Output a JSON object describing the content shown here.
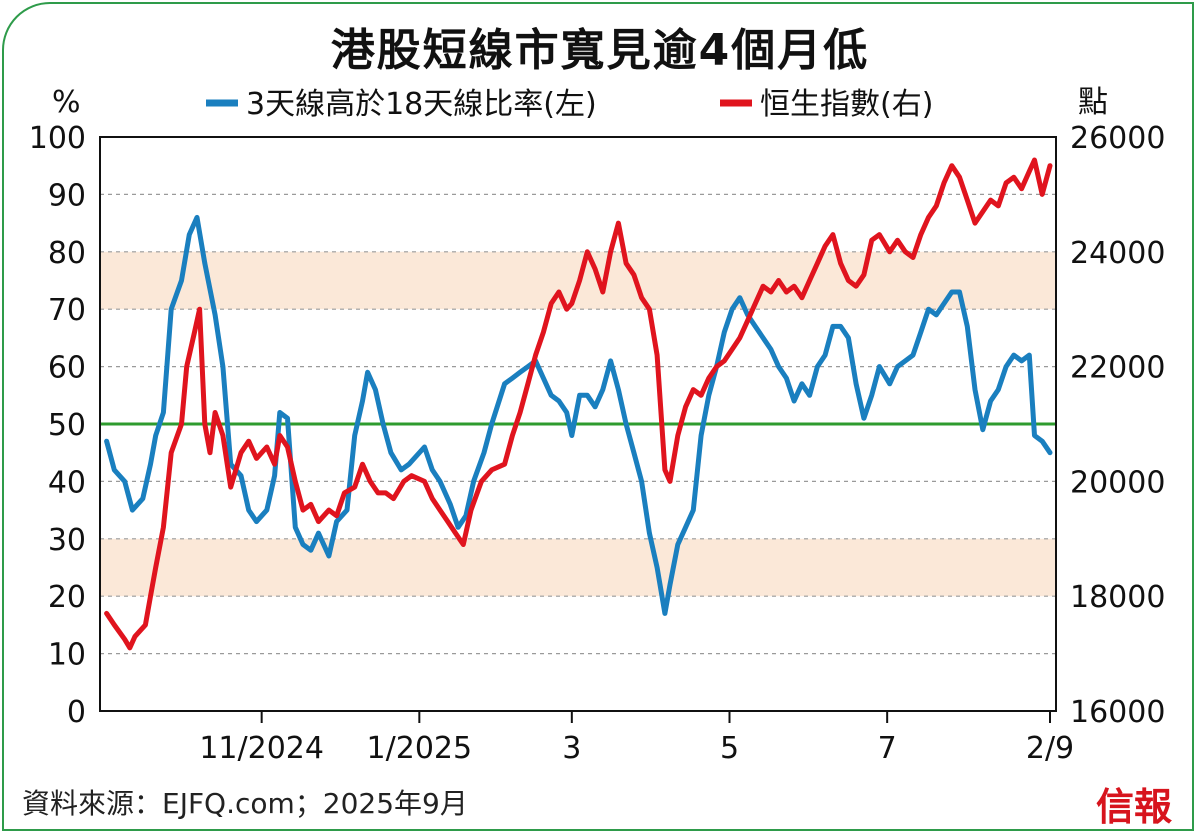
{
  "title": "港股短線市寬見逾4個月低",
  "source": "資料來源：EJFQ.com；2025年9月",
  "brand": "信報",
  "chart_data": {
    "type": "line",
    "left_unit": "%",
    "right_unit": "點",
    "x_range": [
      "2024-09-01",
      "2025-09-02"
    ],
    "x_ticks": [
      {
        "date": "2024-11-01",
        "label": "11/2024"
      },
      {
        "date": "2025-01-01",
        "label": "1/2025"
      },
      {
        "date": "2025-03-01",
        "label": "3"
      },
      {
        "date": "2025-05-01",
        "label": "5"
      },
      {
        "date": "2025-07-01",
        "label": "7"
      },
      {
        "date": "2025-09-02",
        "label": "2/9"
      }
    ],
    "y_left": {
      "min": 0,
      "max": 100,
      "ticks": [
        0,
        10,
        20,
        30,
        40,
        50,
        60,
        70,
        80,
        90,
        100
      ]
    },
    "y_right": {
      "min": 16000,
      "max": 26000,
      "ticks": [
        16000,
        18000,
        20000,
        22000,
        24000,
        26000
      ]
    },
    "grid": true,
    "bands": [
      {
        "from": 70,
        "to": 80,
        "color": "#fbe8d8"
      },
      {
        "from": 20,
        "to": 30,
        "color": "#fbe8d8"
      }
    ],
    "reference_line": {
      "value": 50,
      "color": "#2e9b2e"
    },
    "series": [
      {
        "name": "3天線高於18天線比率(左)",
        "axis": "left",
        "color": "#1a7fbf",
        "points": [
          [
            "2024-09-02",
            47
          ],
          [
            "2024-09-05",
            42
          ],
          [
            "2024-09-09",
            40
          ],
          [
            "2024-09-12",
            35
          ],
          [
            "2024-09-16",
            37
          ],
          [
            "2024-09-19",
            43
          ],
          [
            "2024-09-21",
            48
          ],
          [
            "2024-09-24",
            52
          ],
          [
            "2024-09-27",
            70
          ],
          [
            "2024-10-01",
            75
          ],
          [
            "2024-10-04",
            83
          ],
          [
            "2024-10-07",
            86
          ],
          [
            "2024-10-10",
            78
          ],
          [
            "2024-10-14",
            69
          ],
          [
            "2024-10-17",
            60
          ],
          [
            "2024-10-20",
            43
          ],
          [
            "2024-10-24",
            41
          ],
          [
            "2024-10-27",
            35
          ],
          [
            "2024-10-30",
            33
          ],
          [
            "2024-11-03",
            35
          ],
          [
            "2024-11-06",
            41
          ],
          [
            "2024-11-08",
            52
          ],
          [
            "2024-11-11",
            51
          ],
          [
            "2024-11-14",
            32
          ],
          [
            "2024-11-17",
            29
          ],
          [
            "2024-11-20",
            28
          ],
          [
            "2024-11-23",
            31
          ],
          [
            "2024-11-27",
            27
          ],
          [
            "2024-11-30",
            33
          ],
          [
            "2024-12-04",
            35
          ],
          [
            "2024-12-07",
            48
          ],
          [
            "2024-12-10",
            54
          ],
          [
            "2024-12-12",
            59
          ],
          [
            "2024-12-15",
            56
          ],
          [
            "2024-12-18",
            50
          ],
          [
            "2024-12-21",
            45
          ],
          [
            "2024-12-25",
            42
          ],
          [
            "2024-12-28",
            43
          ],
          [
            "2025-01-03",
            46
          ],
          [
            "2025-01-06",
            42
          ],
          [
            "2025-01-09",
            40
          ],
          [
            "2025-01-13",
            36
          ],
          [
            "2025-01-16",
            32
          ],
          [
            "2025-01-19",
            34
          ],
          [
            "2025-01-22",
            40
          ],
          [
            "2025-01-26",
            45
          ],
          [
            "2025-01-29",
            50
          ],
          [
            "2025-02-03",
            57
          ],
          [
            "2025-02-06",
            58
          ],
          [
            "2025-02-09",
            59
          ],
          [
            "2025-02-12",
            60
          ],
          [
            "2025-02-15",
            61
          ],
          [
            "2025-02-18",
            58
          ],
          [
            "2025-02-21",
            55
          ],
          [
            "2025-02-24",
            54
          ],
          [
            "2025-02-27",
            52
          ],
          [
            "2025-03-01",
            48
          ],
          [
            "2025-03-04",
            55
          ],
          [
            "2025-03-07",
            55
          ],
          [
            "2025-03-10",
            53
          ],
          [
            "2025-03-13",
            56
          ],
          [
            "2025-03-16",
            61
          ],
          [
            "2025-03-19",
            56
          ],
          [
            "2025-03-22",
            50
          ],
          [
            "2025-03-25",
            45
          ],
          [
            "2025-03-28",
            40
          ],
          [
            "2025-03-31",
            31
          ],
          [
            "2025-04-03",
            25
          ],
          [
            "2025-04-06",
            17
          ],
          [
            "2025-04-08",
            22
          ],
          [
            "2025-04-11",
            29
          ],
          [
            "2025-04-14",
            32
          ],
          [
            "2025-04-17",
            35
          ],
          [
            "2025-04-20",
            48
          ],
          [
            "2025-04-23",
            55
          ],
          [
            "2025-04-26",
            60
          ],
          [
            "2025-04-29",
            66
          ],
          [
            "2025-05-02",
            70
          ],
          [
            "2025-05-05",
            72
          ],
          [
            "2025-05-08",
            69
          ],
          [
            "2025-05-11",
            67
          ],
          [
            "2025-05-14",
            65
          ],
          [
            "2025-05-17",
            63
          ],
          [
            "2025-05-20",
            60
          ],
          [
            "2025-05-23",
            58
          ],
          [
            "2025-05-26",
            54
          ],
          [
            "2025-05-29",
            57
          ],
          [
            "2025-06-01",
            55
          ],
          [
            "2025-06-04",
            60
          ],
          [
            "2025-06-07",
            62
          ],
          [
            "2025-06-10",
            67
          ],
          [
            "2025-06-13",
            67
          ],
          [
            "2025-06-16",
            65
          ],
          [
            "2025-06-19",
            57
          ],
          [
            "2025-06-22",
            51
          ],
          [
            "2025-06-25",
            55
          ],
          [
            "2025-06-28",
            60
          ],
          [
            "2025-07-02",
            57
          ],
          [
            "2025-07-05",
            60
          ],
          [
            "2025-07-08",
            61
          ],
          [
            "2025-07-11",
            62
          ],
          [
            "2025-07-14",
            66
          ],
          [
            "2025-07-17",
            70
          ],
          [
            "2025-07-20",
            69
          ],
          [
            "2025-07-23",
            71
          ],
          [
            "2025-07-26",
            73
          ],
          [
            "2025-07-29",
            73
          ],
          [
            "2025-08-01",
            67
          ],
          [
            "2025-08-04",
            56
          ],
          [
            "2025-08-07",
            49
          ],
          [
            "2025-08-10",
            54
          ],
          [
            "2025-08-13",
            56
          ],
          [
            "2025-08-16",
            60
          ],
          [
            "2025-08-19",
            62
          ],
          [
            "2025-08-22",
            61
          ],
          [
            "2025-08-25",
            62
          ],
          [
            "2025-08-27",
            48
          ],
          [
            "2025-08-30",
            47
          ],
          [
            "2025-09-02",
            45
          ]
        ]
      },
      {
        "name": "恒生指數(右)",
        "axis": "right",
        "color": "#e0141e",
        "points": [
          [
            "2024-09-02",
            17700
          ],
          [
            "2024-09-05",
            17500
          ],
          [
            "2024-09-09",
            17250
          ],
          [
            "2024-09-11",
            17100
          ],
          [
            "2024-09-13",
            17300
          ],
          [
            "2024-09-17",
            17500
          ],
          [
            "2024-09-19",
            18000
          ],
          [
            "2024-09-21",
            18500
          ],
          [
            "2024-09-24",
            19200
          ],
          [
            "2024-09-27",
            20500
          ],
          [
            "2024-10-01",
            21000
          ],
          [
            "2024-10-03",
            22000
          ],
          [
            "2024-10-06",
            22600
          ],
          [
            "2024-10-08",
            23000
          ],
          [
            "2024-10-10",
            21000
          ],
          [
            "2024-10-12",
            20500
          ],
          [
            "2024-10-14",
            21200
          ],
          [
            "2024-10-17",
            20800
          ],
          [
            "2024-10-20",
            19900
          ],
          [
            "2024-10-24",
            20500
          ],
          [
            "2024-10-27",
            20700
          ],
          [
            "2024-10-30",
            20400
          ],
          [
            "2024-11-03",
            20600
          ],
          [
            "2024-11-06",
            20300
          ],
          [
            "2024-11-08",
            20800
          ],
          [
            "2024-11-11",
            20600
          ],
          [
            "2024-11-14",
            20000
          ],
          [
            "2024-11-17",
            19500
          ],
          [
            "2024-11-20",
            19600
          ],
          [
            "2024-11-23",
            19300
          ],
          [
            "2024-11-27",
            19500
          ],
          [
            "2024-11-30",
            19400
          ],
          [
            "2024-12-03",
            19800
          ],
          [
            "2024-12-07",
            19900
          ],
          [
            "2024-12-10",
            20300
          ],
          [
            "2024-12-13",
            20000
          ],
          [
            "2024-12-16",
            19800
          ],
          [
            "2024-12-19",
            19800
          ],
          [
            "2024-12-22",
            19700
          ],
          [
            "2024-12-26",
            20000
          ],
          [
            "2024-12-29",
            20100
          ],
          [
            "2025-01-03",
            20000
          ],
          [
            "2025-01-06",
            19700
          ],
          [
            "2025-01-09",
            19500
          ],
          [
            "2025-01-12",
            19300
          ],
          [
            "2025-01-15",
            19100
          ],
          [
            "2025-01-18",
            18900
          ],
          [
            "2025-01-21",
            19500
          ],
          [
            "2025-01-25",
            20000
          ],
          [
            "2025-01-29",
            20200
          ],
          [
            "2025-02-03",
            20300
          ],
          [
            "2025-02-06",
            20800
          ],
          [
            "2025-02-09",
            21200
          ],
          [
            "2025-02-12",
            21700
          ],
          [
            "2025-02-15",
            22200
          ],
          [
            "2025-02-18",
            22600
          ],
          [
            "2025-02-21",
            23100
          ],
          [
            "2025-02-24",
            23300
          ],
          [
            "2025-02-27",
            23000
          ],
          [
            "2025-03-01",
            23100
          ],
          [
            "2025-03-04",
            23500
          ],
          [
            "2025-03-07",
            24000
          ],
          [
            "2025-03-10",
            23700
          ],
          [
            "2025-03-13",
            23300
          ],
          [
            "2025-03-16",
            24000
          ],
          [
            "2025-03-19",
            24500
          ],
          [
            "2025-03-22",
            23800
          ],
          [
            "2025-03-25",
            23600
          ],
          [
            "2025-03-28",
            23200
          ],
          [
            "2025-03-31",
            23000
          ],
          [
            "2025-04-03",
            22200
          ],
          [
            "2025-04-06",
            20200
          ],
          [
            "2025-04-08",
            20000
          ],
          [
            "2025-04-11",
            20800
          ],
          [
            "2025-04-14",
            21300
          ],
          [
            "2025-04-17",
            21600
          ],
          [
            "2025-04-20",
            21500
          ],
          [
            "2025-04-23",
            21800
          ],
          [
            "2025-04-26",
            22000
          ],
          [
            "2025-04-29",
            22100
          ],
          [
            "2025-05-02",
            22300
          ],
          [
            "2025-05-05",
            22500
          ],
          [
            "2025-05-08",
            22800
          ],
          [
            "2025-05-11",
            23100
          ],
          [
            "2025-05-14",
            23400
          ],
          [
            "2025-05-17",
            23300
          ],
          [
            "2025-05-20",
            23500
          ],
          [
            "2025-05-23",
            23300
          ],
          [
            "2025-05-26",
            23400
          ],
          [
            "2025-05-29",
            23200
          ],
          [
            "2025-06-01",
            23500
          ],
          [
            "2025-06-04",
            23800
          ],
          [
            "2025-06-07",
            24100
          ],
          [
            "2025-06-10",
            24300
          ],
          [
            "2025-06-13",
            23800
          ],
          [
            "2025-06-16",
            23500
          ],
          [
            "2025-06-19",
            23400
          ],
          [
            "2025-06-22",
            23600
          ],
          [
            "2025-06-25",
            24200
          ],
          [
            "2025-06-28",
            24300
          ],
          [
            "2025-07-02",
            24000
          ],
          [
            "2025-07-05",
            24200
          ],
          [
            "2025-07-08",
            24000
          ],
          [
            "2025-07-11",
            23900
          ],
          [
            "2025-07-14",
            24300
          ],
          [
            "2025-07-17",
            24600
          ],
          [
            "2025-07-20",
            24800
          ],
          [
            "2025-07-23",
            25200
          ],
          [
            "2025-07-26",
            25500
          ],
          [
            "2025-07-29",
            25300
          ],
          [
            "2025-08-01",
            24900
          ],
          [
            "2025-08-04",
            24500
          ],
          [
            "2025-08-07",
            24700
          ],
          [
            "2025-08-10",
            24900
          ],
          [
            "2025-08-13",
            24800
          ],
          [
            "2025-08-16",
            25200
          ],
          [
            "2025-08-19",
            25300
          ],
          [
            "2025-08-22",
            25100
          ],
          [
            "2025-08-25",
            25400
          ],
          [
            "2025-08-27",
            25600
          ],
          [
            "2025-08-30",
            25000
          ],
          [
            "2025-09-02",
            25500
          ]
        ]
      }
    ]
  }
}
